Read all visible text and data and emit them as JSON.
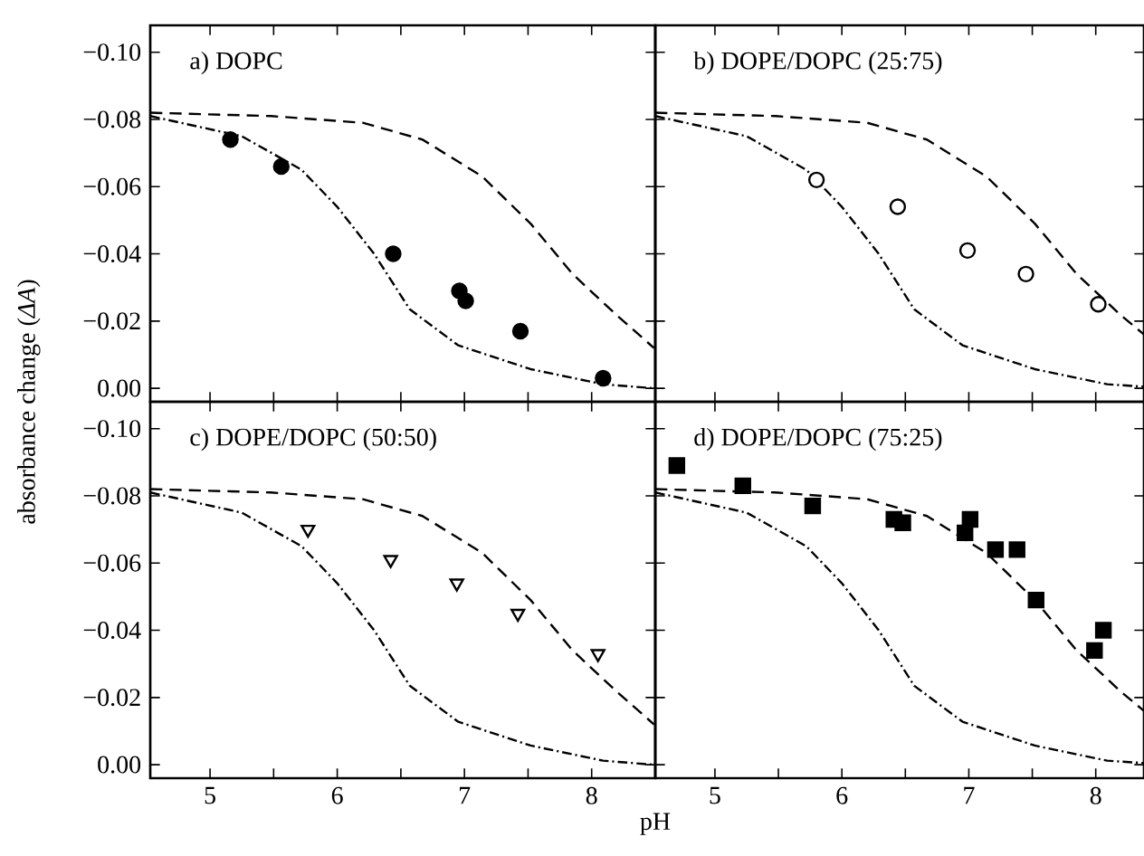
{
  "chart_data": [
    {
      "type": "scatter",
      "title": "a) DOPC",
      "ylabel": "absorbance change (*ΔA*)",
      "xlim": [
        4.53,
        8.5
      ],
      "ylim": [
        0.004,
        -0.108
      ],
      "tick_labels": "y",
      "xticks": [
        {
          "value": 5,
          "label": null
        },
        {
          "value": 5.5,
          "label": null
        },
        {
          "value": 6,
          "label": null
        },
        {
          "value": 6.5,
          "label": null
        },
        {
          "value": 7,
          "label": null
        },
        {
          "value": 7.5,
          "label": null
        },
        {
          "value": 8,
          "label": null
        }
      ],
      "yticks": [
        {
          "value": -0.1,
          "label": "−0.10"
        },
        {
          "value": -0.08,
          "label": "−0.08"
        },
        {
          "value": -0.06,
          "label": "−0.06"
        },
        {
          "value": -0.04,
          "label": "−0.04"
        },
        {
          "value": -0.02,
          "label": "−0.02"
        },
        {
          "value": 0,
          "label": "0.00"
        }
      ],
      "series": [
        {
          "marker": "circle",
          "color": "#000000",
          "x": [
            5.16,
            5.56,
            6.44,
            6.96,
            7.01,
            7.44,
            8.09
          ],
          "values": [
            -0.074,
            -0.066,
            -0.04,
            -0.029,
            -0.026,
            -0.017,
            -0.003
          ]
        },
        {
          "type": "line",
          "line_style": "dashed",
          "color": "#000000",
          "x": [
            4.53,
            5.48,
            6.2,
            6.67,
            7.14,
            7.52,
            7.85,
            8.19,
            8.49
          ],
          "values": [
            -0.082,
            -0.081,
            -0.079,
            -0.074,
            -0.063,
            -0.049,
            -0.034,
            -0.022,
            -0.012
          ]
        },
        {
          "type": "line",
          "line_style": "dashdot",
          "color": "#000000",
          "x": [
            4.53,
            5.25,
            5.72,
            6.0,
            6.29,
            6.57,
            6.95,
            7.52,
            8.09,
            8.49
          ],
          "values": [
            -0.081,
            -0.075,
            -0.065,
            -0.054,
            -0.04,
            -0.0235,
            -0.0128,
            -0.0057,
            -0.0012,
            0.0
          ]
        }
      ]
    },
    {
      "type": "scatter",
      "title": "b) DOPE/DOPC (25:75)",
      "xlim": [
        4.53,
        8.38
      ],
      "ylim": [
        0.004,
        -0.108
      ],
      "tick_labels": false,
      "xticks": [
        {
          "value": 5,
          "label": null
        },
        {
          "value": 5.5,
          "label": null
        },
        {
          "value": 6,
          "label": null
        },
        {
          "value": 6.5,
          "label": null
        },
        {
          "value": 7,
          "label": null
        },
        {
          "value": 7.5,
          "label": null
        },
        {
          "value": 8,
          "label": null
        }
      ],
      "yticks": [
        {
          "value": -0.1,
          "label": null
        },
        {
          "value": -0.08,
          "label": null
        },
        {
          "value": -0.06,
          "label": null
        },
        {
          "value": -0.04,
          "label": null
        },
        {
          "value": -0.02,
          "label": null
        },
        {
          "value": 0,
          "label": null
        }
      ],
      "series": [
        {
          "marker": "circle",
          "color": "#000000",
          "x": [
            5.8,
            6.44,
            6.99,
            7.45,
            8.02
          ],
          "values": [
            -0.062,
            -0.054,
            -0.041,
            -0.034,
            -0.025
          ]
        },
        {
          "type": "line",
          "line_style": "dashed",
          "color": "#000000",
          "x": [
            4.53,
            5.48,
            6.2,
            6.67,
            7.14,
            7.52,
            7.85,
            8.19,
            8.38
          ],
          "values": [
            -0.082,
            -0.081,
            -0.079,
            -0.074,
            -0.063,
            -0.049,
            -0.034,
            -0.022,
            -0.016
          ]
        },
        {
          "type": "line",
          "line_style": "dashdot",
          "color": "#000000",
          "x": [
            4.53,
            5.25,
            5.72,
            6.0,
            6.29,
            6.57,
            6.95,
            7.52,
            8.09,
            8.38
          ],
          "values": [
            -0.081,
            -0.075,
            -0.065,
            -0.054,
            -0.04,
            -0.0235,
            -0.0128,
            -0.0057,
            -0.0012,
            -0.0005
          ]
        }
      ]
    },
    {
      "type": "scatter",
      "title": "c) DOPE/DOPC (50:50)",
      "xlabel": "pH",
      "xlim": [
        4.53,
        8.5
      ],
      "ylim": [
        0.004,
        -0.108
      ],
      "xticks": [
        {
          "value": 5,
          "label": "5"
        },
        {
          "value": 5.5,
          "label": null
        },
        {
          "value": 6,
          "label": "6"
        },
        {
          "value": 6.5,
          "label": null
        },
        {
          "value": 7,
          "label": "7"
        },
        {
          "value": 7.5,
          "label": null
        },
        {
          "value": 8,
          "label": "8"
        }
      ],
      "yticks": [
        {
          "value": -0.1,
          "label": "−0.10"
        },
        {
          "value": -0.08,
          "label": "−0.08"
        },
        {
          "value": -0.06,
          "label": "−0.06"
        },
        {
          "value": -0.04,
          "label": "−0.04"
        },
        {
          "value": -0.02,
          "label": "−0.02"
        },
        {
          "value": 0,
          "label": "0.00"
        }
      ],
      "series": [
        {
          "marker": "triangle",
          "color": "#000000",
          "x": [
            5.77,
            6.42,
            6.94,
            7.42,
            8.05
          ],
          "values": [
            -0.07,
            -0.061,
            -0.054,
            -0.045,
            -0.033
          ]
        },
        {
          "type": "line",
          "line_style": "dashed",
          "color": "#000000",
          "x": [
            4.53,
            5.48,
            6.2,
            6.67,
            7.14,
            7.52,
            7.85,
            8.19,
            8.49
          ],
          "values": [
            -0.082,
            -0.081,
            -0.079,
            -0.074,
            -0.063,
            -0.049,
            -0.034,
            -0.022,
            -0.012
          ]
        },
        {
          "type": "line",
          "line_style": "dashdot",
          "color": "#000000",
          "x": [
            4.53,
            5.25,
            5.72,
            6.0,
            6.29,
            6.57,
            6.95,
            7.52,
            8.09,
            8.49
          ],
          "values": [
            -0.081,
            -0.075,
            -0.065,
            -0.054,
            -0.04,
            -0.0235,
            -0.0128,
            -0.0057,
            -0.0012,
            0.0
          ]
        }
      ]
    },
    {
      "type": "scatter",
      "title": "d) DOPE/DOPC (75:25)",
      "xlim": [
        4.53,
        8.38
      ],
      "ylim": [
        0.004,
        -0.108
      ],
      "tick_labels": "x",
      "xticks": [
        {
          "value": 5,
          "label": "5"
        },
        {
          "value": 5.5,
          "label": null
        },
        {
          "value": 6,
          "label": "6"
        },
        {
          "value": 6.5,
          "label": null
        },
        {
          "value": 7,
          "label": "7"
        },
        {
          "value": 7.5,
          "label": null
        },
        {
          "value": 8,
          "label": "8"
        }
      ],
      "yticks": [
        {
          "value": -0.1,
          "label": null
        },
        {
          "value": -0.08,
          "label": null
        },
        {
          "value": -0.06,
          "label": null
        },
        {
          "value": -0.04,
          "label": null
        },
        {
          "value": -0.02,
          "label": null
        },
        {
          "value": 0,
          "label": null
        }
      ],
      "series": [
        {
          "marker": "square",
          "color": "#000000",
          "x": [
            4.7,
            5.22,
            5.77,
            6.41,
            6.48,
            6.97,
            7.01,
            7.21,
            7.38,
            7.53,
            7.99,
            8.06
          ],
          "values": [
            -0.089,
            -0.083,
            -0.077,
            -0.073,
            -0.072,
            -0.069,
            -0.073,
            -0.064,
            -0.064,
            -0.049,
            -0.034,
            -0.04
          ]
        },
        {
          "type": "line",
          "line_style": "dashed",
          "color": "#000000",
          "x": [
            4.53,
            5.48,
            6.2,
            6.67,
            7.14,
            7.52,
            7.85,
            8.19,
            8.38
          ],
          "values": [
            -0.082,
            -0.081,
            -0.079,
            -0.074,
            -0.063,
            -0.049,
            -0.034,
            -0.022,
            -0.016
          ]
        },
        {
          "type": "line",
          "line_style": "dashdot",
          "color": "#000000",
          "x": [
            4.53,
            5.25,
            5.72,
            6.0,
            6.29,
            6.57,
            6.95,
            7.52,
            8.09,
            8.38
          ],
          "values": [
            -0.081,
            -0.075,
            -0.065,
            -0.054,
            -0.04,
            -0.0235,
            -0.0128,
            -0.0057,
            -0.0012,
            -0.0005
          ]
        }
      ]
    }
  ]
}
